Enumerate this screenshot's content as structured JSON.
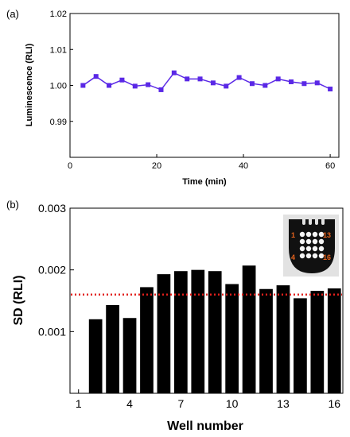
{
  "chart_data": [
    {
      "panel_label": "(a)",
      "type": "line",
      "title": "",
      "xlabel": "Time (min)",
      "ylabel": "Luminescence (RLI)",
      "xlim": [
        0,
        62
      ],
      "ylim": [
        0.98,
        1.02
      ],
      "xticks": [
        "0",
        "20",
        "40",
        "60"
      ],
      "xtick_values": [
        0,
        20,
        40,
        60
      ],
      "yticks": [
        "0.99",
        "1.00",
        "1.01",
        "1.02"
      ],
      "ytick_values": [
        0.99,
        1.0,
        1.01,
        1.02
      ],
      "grid": false,
      "series": [
        {
          "color": "#5a28e6",
          "marker": "square",
          "x": [
            3,
            6,
            9,
            12,
            15,
            18,
            21,
            24,
            27,
            30,
            33,
            36,
            39,
            42,
            45,
            48,
            51,
            54,
            57,
            60
          ],
          "y": [
            1.0,
            1.0025,
            1.0,
            1.0015,
            0.9998,
            1.0002,
            0.9988,
            1.0035,
            1.0018,
            1.0018,
            1.0007,
            0.9998,
            1.0022,
            1.0005,
            1.0,
            1.0018,
            1.001,
            1.0005,
            1.0007,
            0.999
          ]
        }
      ]
    },
    {
      "panel_label": "(b)",
      "type": "bar",
      "title": "",
      "xlabel": "Well number",
      "ylabel": "SD (RLI)",
      "xlim": [
        0.5,
        16.5
      ],
      "ylim": [
        0,
        0.003
      ],
      "xticks": [
        "1",
        "4",
        "7",
        "10",
        "13",
        "16"
      ],
      "xtick_values": [
        1,
        4,
        7,
        10,
        13,
        16
      ],
      "yticks": [
        "0.001",
        "0.002",
        "0.003"
      ],
      "ytick_values": [
        0.001,
        0.002,
        0.003
      ],
      "grid": false,
      "categories": [
        1,
        2,
        3,
        4,
        5,
        6,
        7,
        8,
        9,
        10,
        11,
        12,
        13,
        14,
        15,
        16
      ],
      "series": [
        {
          "color": "#000000",
          "values": [
            null,
            0.0012,
            0.00143,
            0.00122,
            0.00172,
            0.00193,
            0.00198,
            0.002,
            0.00198,
            0.00177,
            0.00207,
            0.00169,
            0.00175,
            0.00154,
            0.00166,
            0.0017
          ]
        }
      ],
      "reference_line": {
        "value": 0.0016,
        "color": "#e0201c",
        "style": "dotted"
      },
      "inset": {
        "labels": [
          "1",
          "13",
          "4",
          "16"
        ],
        "label_color": "#e8641e"
      }
    }
  ]
}
